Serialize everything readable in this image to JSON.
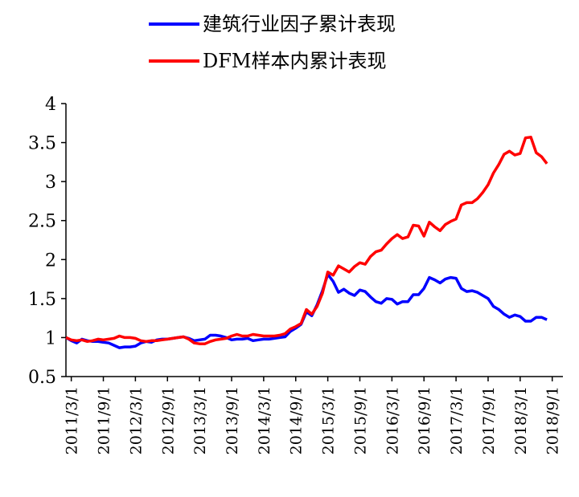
{
  "chart_data": {
    "type": "line",
    "title": "",
    "xlabel": "",
    "ylabel": "",
    "ylim": [
      0.5,
      4
    ],
    "yticks": [
      "0.5",
      "1",
      "1.5",
      "2",
      "2.5",
      "3",
      "3.5",
      "4"
    ],
    "xlim": [
      "2011-02",
      "2018-11"
    ],
    "xticks": [
      "2011/3/1",
      "2011/9/1",
      "2012/3/1",
      "2012/9/1",
      "2013/3/1",
      "2013/9/1",
      "2014/3/1",
      "2014/9/1",
      "2015/3/1",
      "2015/9/1",
      "2016/3/1",
      "2016/9/1",
      "2017/3/1",
      "2017/9/1",
      "2018/3/1",
      "2018/9/1"
    ],
    "grid": false,
    "legend_position": "top",
    "series": [
      {
        "name": "建筑行业因子累计表现",
        "color": "#0000ff",
        "points": [
          [
            "2011-02",
            1.0
          ],
          [
            "2011-03",
            0.96
          ],
          [
            "2011-04",
            0.93
          ],
          [
            "2011-05",
            0.98
          ],
          [
            "2011-06",
            0.96
          ],
          [
            "2011-07",
            0.95
          ],
          [
            "2011-08",
            0.95
          ],
          [
            "2011-09",
            0.94
          ],
          [
            "2011-10",
            0.93
          ],
          [
            "2011-11",
            0.9
          ],
          [
            "2011-12",
            0.87
          ],
          [
            "2012-01",
            0.88
          ],
          [
            "2012-02",
            0.88
          ],
          [
            "2012-03",
            0.89
          ],
          [
            "2012-04",
            0.93
          ],
          [
            "2012-05",
            0.95
          ],
          [
            "2012-06",
            0.94
          ],
          [
            "2012-07",
            0.97
          ],
          [
            "2012-08",
            0.98
          ],
          [
            "2012-09",
            0.98
          ],
          [
            "2012-10",
            0.99
          ],
          [
            "2012-11",
            1.0
          ],
          [
            "2012-12",
            1.01
          ],
          [
            "2013-01",
            0.99
          ],
          [
            "2013-02",
            0.96
          ],
          [
            "2013-03",
            0.97
          ],
          [
            "2013-04",
            0.98
          ],
          [
            "2013-05",
            1.03
          ],
          [
            "2013-06",
            1.03
          ],
          [
            "2013-07",
            1.02
          ],
          [
            "2013-08",
            1.0
          ],
          [
            "2013-09",
            0.97
          ],
          [
            "2013-10",
            0.98
          ],
          [
            "2013-11",
            0.98
          ],
          [
            "2013-12",
            0.99
          ],
          [
            "2014-01",
            0.96
          ],
          [
            "2014-02",
            0.97
          ],
          [
            "2014-03",
            0.98
          ],
          [
            "2014-04",
            0.98
          ],
          [
            "2014-05",
            0.99
          ],
          [
            "2014-06",
            1.0
          ],
          [
            "2014-07",
            1.01
          ],
          [
            "2014-08",
            1.08
          ],
          [
            "2014-09",
            1.12
          ],
          [
            "2014-10",
            1.17
          ],
          [
            "2014-11",
            1.33
          ],
          [
            "2014-12",
            1.28
          ],
          [
            "2015-01",
            1.42
          ],
          [
            "2015-02",
            1.6
          ],
          [
            "2015-03",
            1.81
          ],
          [
            "2015-04",
            1.72
          ],
          [
            "2015-05",
            1.58
          ],
          [
            "2015-06",
            1.62
          ],
          [
            "2015-07",
            1.57
          ],
          [
            "2015-08",
            1.54
          ],
          [
            "2015-09",
            1.61
          ],
          [
            "2015-10",
            1.59
          ],
          [
            "2015-11",
            1.52
          ],
          [
            "2015-12",
            1.46
          ],
          [
            "2016-01",
            1.44
          ],
          [
            "2016-02",
            1.5
          ],
          [
            "2016-03",
            1.49
          ],
          [
            "2016-04",
            1.43
          ],
          [
            "2016-05",
            1.46
          ],
          [
            "2016-06",
            1.46
          ],
          [
            "2016-07",
            1.55
          ],
          [
            "2016-08",
            1.55
          ],
          [
            "2016-09",
            1.63
          ],
          [
            "2016-10",
            1.77
          ],
          [
            "2016-11",
            1.74
          ],
          [
            "2016-12",
            1.7
          ],
          [
            "2017-01",
            1.75
          ],
          [
            "2017-02",
            1.77
          ],
          [
            "2017-03",
            1.76
          ],
          [
            "2017-04",
            1.63
          ],
          [
            "2017-05",
            1.59
          ],
          [
            "2017-06",
            1.6
          ],
          [
            "2017-07",
            1.58
          ],
          [
            "2017-08",
            1.54
          ],
          [
            "2017-09",
            1.5
          ],
          [
            "2017-10",
            1.4
          ],
          [
            "2017-11",
            1.36
          ],
          [
            "2017-12",
            1.3
          ],
          [
            "2018-01",
            1.26
          ],
          [
            "2018-02",
            1.29
          ],
          [
            "2018-03",
            1.27
          ],
          [
            "2018-04",
            1.21
          ],
          [
            "2018-05",
            1.21
          ],
          [
            "2018-06",
            1.26
          ],
          [
            "2018-07",
            1.26
          ],
          [
            "2018-08",
            1.23
          ]
        ]
      },
      {
        "name": "DFM样本内累计表现",
        "color": "#ff0000",
        "points": [
          [
            "2011-02",
            1.0
          ],
          [
            "2011-03",
            0.97
          ],
          [
            "2011-04",
            0.96
          ],
          [
            "2011-05",
            0.97
          ],
          [
            "2011-06",
            0.95
          ],
          [
            "2011-07",
            0.96
          ],
          [
            "2011-08",
            0.98
          ],
          [
            "2011-09",
            0.97
          ],
          [
            "2011-10",
            0.98
          ],
          [
            "2011-11",
            0.99
          ],
          [
            "2011-12",
            1.02
          ],
          [
            "2012-01",
            1.0
          ],
          [
            "2012-02",
            1.0
          ],
          [
            "2012-03",
            0.99
          ],
          [
            "2012-04",
            0.96
          ],
          [
            "2012-05",
            0.95
          ],
          [
            "2012-06",
            0.96
          ],
          [
            "2012-07",
            0.96
          ],
          [
            "2012-08",
            0.97
          ],
          [
            "2012-09",
            0.98
          ],
          [
            "2012-10",
            0.99
          ],
          [
            "2012-11",
            1.0
          ],
          [
            "2012-12",
            1.01
          ],
          [
            "2013-01",
            0.98
          ],
          [
            "2013-02",
            0.93
          ],
          [
            "2013-03",
            0.92
          ],
          [
            "2013-04",
            0.92
          ],
          [
            "2013-05",
            0.95
          ],
          [
            "2013-06",
            0.97
          ],
          [
            "2013-07",
            0.98
          ],
          [
            "2013-08",
            0.99
          ],
          [
            "2013-09",
            1.02
          ],
          [
            "2013-10",
            1.04
          ],
          [
            "2013-11",
            1.02
          ],
          [
            "2013-12",
            1.02
          ],
          [
            "2014-01",
            1.04
          ],
          [
            "2014-02",
            1.03
          ],
          [
            "2014-03",
            1.02
          ],
          [
            "2014-04",
            1.02
          ],
          [
            "2014-05",
            1.02
          ],
          [
            "2014-06",
            1.03
          ],
          [
            "2014-07",
            1.05
          ],
          [
            "2014-08",
            1.11
          ],
          [
            "2014-09",
            1.14
          ],
          [
            "2014-10",
            1.18
          ],
          [
            "2014-11",
            1.36
          ],
          [
            "2014-12",
            1.3
          ],
          [
            "2015-01",
            1.4
          ],
          [
            "2015-02",
            1.57
          ],
          [
            "2015-03",
            1.84
          ],
          [
            "2015-04",
            1.8
          ],
          [
            "2015-05",
            1.92
          ],
          [
            "2015-06",
            1.88
          ],
          [
            "2015-07",
            1.84
          ],
          [
            "2015-08",
            1.91
          ],
          [
            "2015-09",
            1.96
          ],
          [
            "2015-10",
            1.94
          ],
          [
            "2015-11",
            2.04
          ],
          [
            "2015-12",
            2.1
          ],
          [
            "2016-01",
            2.12
          ],
          [
            "2016-02",
            2.2
          ],
          [
            "2016-03",
            2.27
          ],
          [
            "2016-04",
            2.32
          ],
          [
            "2016-05",
            2.27
          ],
          [
            "2016-06",
            2.29
          ],
          [
            "2016-07",
            2.44
          ],
          [
            "2016-08",
            2.43
          ],
          [
            "2016-09",
            2.3
          ],
          [
            "2016-10",
            2.48
          ],
          [
            "2016-11",
            2.42
          ],
          [
            "2016-12",
            2.37
          ],
          [
            "2017-01",
            2.45
          ],
          [
            "2017-02",
            2.49
          ],
          [
            "2017-03",
            2.52
          ],
          [
            "2017-04",
            2.7
          ],
          [
            "2017-05",
            2.73
          ],
          [
            "2017-06",
            2.73
          ],
          [
            "2017-07",
            2.78
          ],
          [
            "2017-08",
            2.86
          ],
          [
            "2017-09",
            2.96
          ],
          [
            "2017-10",
            3.11
          ],
          [
            "2017-11",
            3.22
          ],
          [
            "2017-12",
            3.35
          ],
          [
            "2018-01",
            3.39
          ],
          [
            "2018-02",
            3.34
          ],
          [
            "2018-03",
            3.36
          ],
          [
            "2018-04",
            3.56
          ],
          [
            "2018-05",
            3.57
          ],
          [
            "2018-06",
            3.37
          ],
          [
            "2018-07",
            3.32
          ],
          [
            "2018-08",
            3.23
          ]
        ]
      }
    ]
  }
}
